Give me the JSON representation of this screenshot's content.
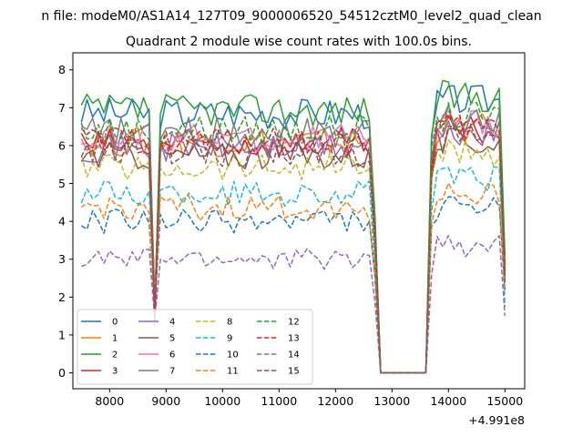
{
  "figure": {
    "suptitle": "n file: modeM0/AS1A14_127T09_9000006520_54512cztM0_level2_quad_clean"
  },
  "chart_data": {
    "type": "line",
    "title": "Quadrant 2 module wise count rates with 100.0s bins.",
    "xlabel": "",
    "ylabel": "",
    "x_offset_label": "+4.991e8",
    "xlim": [
      7350,
      15350
    ],
    "ylim": [
      -0.42,
      8.45
    ],
    "xticks": [
      8000,
      9000,
      10000,
      11000,
      12000,
      13000,
      14000,
      15000
    ],
    "xtick_labels": [
      "8000",
      "9000",
      "10000",
      "11000",
      "12000",
      "13000",
      "14000",
      "15000"
    ],
    "yticks": [
      0,
      1,
      2,
      3,
      4,
      5,
      6,
      7,
      8
    ],
    "ytick_labels": [
      "0",
      "1",
      "2",
      "3",
      "4",
      "5",
      "6",
      "7",
      "8"
    ],
    "grid": false,
    "legend": {
      "placement": "lower-left",
      "columns": 4
    },
    "profile": {
      "x_start": 7500,
      "x_step": 100,
      "x_end": 15000,
      "dip_at": 8800,
      "gap": [
        12800,
        13600
      ]
    },
    "series": [
      {
        "name": "0",
        "color": "#1f77b4",
        "dash": "solid",
        "level": 6.85
      },
      {
        "name": "1",
        "color": "#ff7f0e",
        "dash": "solid",
        "level": 6.1
      },
      {
        "name": "2",
        "color": "#2ca02c",
        "dash": "solid",
        "level": 6.95
      },
      {
        "name": "3",
        "color": "#d62728",
        "dash": "solid",
        "level": 6.05
      },
      {
        "name": "4",
        "color": "#9467bd",
        "dash": "solid",
        "level": 5.95
      },
      {
        "name": "5",
        "color": "#8c564b",
        "dash": "solid",
        "level": 5.75
      },
      {
        "name": "6",
        "color": "#e377c2",
        "dash": "solid",
        "level": 6.2
      },
      {
        "name": "7",
        "color": "#7f7f7f",
        "dash": "solid",
        "level": 6.35
      },
      {
        "name": "8",
        "color": "#bcbd22",
        "dash": "dashed",
        "level": 5.45
      },
      {
        "name": "9",
        "color": "#17becf",
        "dash": "dashed",
        "level": 4.75
      },
      {
        "name": "10",
        "color": "#1f77b4",
        "dash": "dashed",
        "level": 4.0
      },
      {
        "name": "11",
        "color": "#ff7f0e",
        "dash": "dashed",
        "level": 4.35
      },
      {
        "name": "12",
        "color": "#2ca02c",
        "dash": "dashed",
        "level": 6.4
      },
      {
        "name": "13",
        "color": "#d62728",
        "dash": "dashed",
        "level": 6.1
      },
      {
        "name": "14",
        "color": "#9467bd",
        "dash": "dashed",
        "level": 3.0
      },
      {
        "name": "15",
        "color": "#8c564b",
        "dash": "dashed",
        "level": 5.8
      }
    ]
  }
}
